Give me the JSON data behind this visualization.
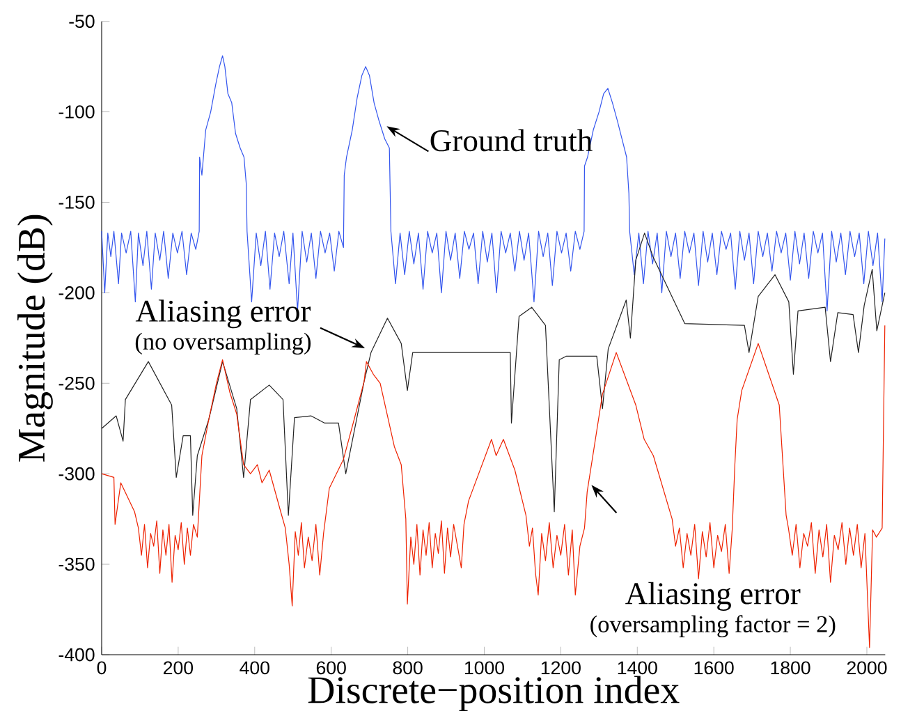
{
  "chart_data": {
    "type": "line",
    "xlabel": "Discrete−position index",
    "ylabel": "Magnitude (dB)",
    "xlim": [
      0,
      2048
    ],
    "ylim": [
      -400,
      -50
    ],
    "xticks": [
      0,
      200,
      400,
      600,
      800,
      1000,
      1200,
      1400,
      1600,
      1800,
      2000
    ],
    "yticks": [
      -400,
      -350,
      -300,
      -250,
      -200,
      -150,
      -100,
      -50
    ],
    "series": [
      {
        "color": "#3355ee",
        "x": [
          0,
          8,
          16,
          24,
          32,
          44,
          52,
          64,
          76,
          88,
          96,
          108,
          118,
          130,
          140,
          152,
          162,
          174,
          186,
          198,
          210,
          222,
          234,
          246,
          255,
          256,
          262,
          272,
          285,
          298,
          308,
          316,
          322,
          330,
          340,
          350,
          362,
          372,
          378,
          380,
          392,
          404,
          416,
          428,
          440,
          452,
          464,
          476,
          490,
          500,
          512,
          524,
          536,
          548,
          560,
          572,
          584,
          596,
          608,
          620,
          632,
          634,
          640,
          655,
          668,
          680,
          690,
          700,
          712,
          725,
          740,
          752,
          756,
          768,
          780,
          792,
          804,
          816,
          828,
          840,
          852,
          864,
          876,
          888,
          900,
          912,
          924,
          936,
          948,
          960,
          972,
          984,
          996,
          1008,
          1020,
          1032,
          1044,
          1056,
          1068,
          1080,
          1092,
          1104,
          1116,
          1130,
          1142,
          1154,
          1166,
          1178,
          1190,
          1202,
          1214,
          1226,
          1238,
          1250,
          1261,
          1262,
          1270,
          1285,
          1300,
          1312,
          1323,
          1335,
          1348,
          1360,
          1372,
          1378,
          1380,
          1392,
          1404,
          1416,
          1428,
          1440,
          1452,
          1464,
          1476,
          1488,
          1500,
          1512,
          1524,
          1536,
          1548,
          1560,
          1572,
          1584,
          1596,
          1608,
          1620,
          1632,
          1644,
          1656,
          1668,
          1680,
          1692,
          1704,
          1716,
          1728,
          1740,
          1752,
          1764,
          1776,
          1788,
          1800,
          1812,
          1824,
          1836,
          1848,
          1860,
          1872,
          1884,
          1896,
          1908,
          1920,
          1932,
          1944,
          1956,
          1968,
          1980,
          1992,
          2004,
          2016,
          2028,
          2040,
          2047
        ],
        "values": [
          -166,
          -200,
          -167,
          -180,
          -166,
          -195,
          -167,
          -178,
          -166,
          -205,
          -167,
          -185,
          -166,
          -198,
          -167,
          -182,
          -166,
          -192,
          -167,
          -178,
          -166,
          -190,
          -167,
          -176,
          -166,
          -125,
          -135,
          -110,
          -100,
          -85,
          -75,
          -69,
          -75,
          -90,
          -95,
          -112,
          -120,
          -125,
          -140,
          -166,
          -205,
          -167,
          -185,
          -166,
          -198,
          -167,
          -180,
          -166,
          -195,
          -167,
          -210,
          -166,
          -183,
          -167,
          -192,
          -166,
          -178,
          -167,
          -188,
          -166,
          -175,
          -135,
          -125,
          -110,
          -92,
          -80,
          -75,
          -80,
          -95,
          -105,
          -115,
          -120,
          -166,
          -195,
          -167,
          -190,
          -166,
          -184,
          -167,
          -198,
          -166,
          -178,
          -167,
          -200,
          -166,
          -182,
          -167,
          -192,
          -166,
          -176,
          -167,
          -195,
          -166,
          -183,
          -167,
          -200,
          -166,
          -178,
          -167,
          -188,
          -166,
          -182,
          -167,
          -205,
          -166,
          -180,
          -167,
          -196,
          -166,
          -178,
          -167,
          -188,
          -166,
          -176,
          -166,
          -130,
          -125,
          -110,
          -100,
          -90,
          -87,
          -95,
          -105,
          -115,
          -125,
          -145,
          -166,
          -190,
          -167,
          -195,
          -166,
          -184,
          -167,
          -200,
          -166,
          -180,
          -167,
          -192,
          -166,
          -178,
          -167,
          -196,
          -166,
          -183,
          -167,
          -190,
          -166,
          -176,
          -167,
          -198,
          -166,
          -182,
          -167,
          -195,
          -166,
          -180,
          -167,
          -188,
          -166,
          -178,
          -167,
          -193,
          -166,
          -184,
          -167,
          -192,
          -166,
          -178,
          -167,
          -210,
          -166,
          -183,
          -167,
          -190,
          -166,
          -180,
          -167,
          -195,
          -166,
          -185,
          -167,
          -205,
          -170
        ]
      },
      {
        "color": "#222222",
        "x": [
          0,
          38,
          56,
          62,
          122,
          183,
          195,
          213,
          232,
          238,
          250,
          280,
          316,
          353,
          371,
          389,
          438,
          474,
          488,
          504,
          547,
          583,
          619,
          638,
          686,
          704,
          747,
          783,
          799,
          813,
          838,
          1068,
          1071,
          1091,
          1124,
          1160,
          1183,
          1196,
          1215,
          1294,
          1309,
          1324,
          1371,
          1382,
          1396,
          1419,
          1441,
          1524,
          1680,
          1692,
          1716,
          1760,
          1796,
          1808,
          1820,
          1891,
          1905,
          1924,
          1964,
          1978,
          1993,
          2014,
          2026,
          2047
        ],
        "values": [
          -275,
          -268,
          -282,
          -259,
          -238,
          -262,
          -302,
          -279,
          -279,
          -323,
          -290,
          -270,
          -238,
          -264,
          -302,
          -259,
          -251,
          -259,
          -323,
          -269,
          -268,
          -272,
          -272,
          -300,
          -249,
          -233,
          -214,
          -228,
          -254,
          -233,
          -233,
          -233,
          -272,
          -213,
          -208,
          -218,
          -321,
          -237,
          -235,
          -235,
          -264,
          -231,
          -204,
          -225,
          -182,
          -167,
          -180,
          -217,
          -218,
          -233,
          -202,
          -190,
          -205,
          -245,
          -210,
          -208,
          -238,
          -211,
          -212,
          -233,
          -207,
          -187,
          -221,
          -200
        ]
      },
      {
        "color": "#ee2200",
        "x": [
          0,
          32,
          35,
          50,
          86,
          96,
          104,
          112,
          120,
          128,
          136,
          144,
          152,
          160,
          168,
          176,
          184,
          192,
          200,
          208,
          216,
          224,
          232,
          240,
          250,
          262,
          280,
          300,
          316,
          335,
          353,
          371,
          389,
          407,
          419,
          438,
          468,
          480,
          490,
          498,
          506,
          514,
          522,
          530,
          540,
          550,
          560,
          570,
          580,
          595,
          632,
          660,
          686,
          692,
          710,
          728,
          765,
          783,
          795,
          799,
          808,
          816,
          824,
          832,
          840,
          848,
          856,
          864,
          872,
          880,
          888,
          896,
          904,
          912,
          920,
          930,
          940,
          947,
          959,
          1019,
          1031,
          1050,
          1080,
          1109,
          1118,
          1126,
          1134,
          1141,
          1150,
          1160,
          1170,
          1180,
          1190,
          1200,
          1210,
          1220,
          1230,
          1238,
          1250,
          1262,
          1269,
          1309,
          1345,
          1396,
          1418,
          1442,
          1491,
          1500,
          1510,
          1520,
          1530,
          1540,
          1550,
          1560,
          1570,
          1580,
          1590,
          1600,
          1610,
          1620,
          1630,
          1640,
          1648,
          1655,
          1661,
          1673,
          1716,
          1771,
          1789,
          1795,
          1805,
          1815,
          1825,
          1835,
          1845,
          1855,
          1865,
          1875,
          1885,
          1895,
          1905,
          1915,
          1925,
          1935,
          1945,
          1955,
          1965,
          1975,
          1985,
          1995,
          2007,
          2015,
          2025,
          2040,
          2047
        ],
        "values": [
          -300,
          -302,
          -328,
          -305,
          -321,
          -330,
          -345,
          -328,
          -352,
          -333,
          -340,
          -326,
          -355,
          -331,
          -345,
          -328,
          -360,
          -334,
          -342,
          -327,
          -350,
          -330,
          -345,
          -328,
          -335,
          -290,
          -270,
          -250,
          -237,
          -255,
          -267,
          -295,
          -300,
          -295,
          -305,
          -298,
          -321,
          -330,
          -350,
          -373,
          -332,
          -345,
          -327,
          -352,
          -335,
          -348,
          -328,
          -356,
          -333,
          -308,
          -292,
          -270,
          -249,
          -238,
          -245,
          -250,
          -285,
          -295,
          -325,
          -372,
          -335,
          -350,
          -328,
          -356,
          -331,
          -345,
          -327,
          -352,
          -333,
          -344,
          -326,
          -355,
          -330,
          -346,
          -328,
          -340,
          -352,
          -328,
          -315,
          -281,
          -290,
          -281,
          -298,
          -323,
          -340,
          -330,
          -355,
          -367,
          -333,
          -348,
          -327,
          -352,
          -334,
          -345,
          -328,
          -356,
          -331,
          -367,
          -340,
          -330,
          -310,
          -256,
          -233,
          -262,
          -281,
          -290,
          -325,
          -340,
          -330,
          -352,
          -333,
          -345,
          -328,
          -358,
          -332,
          -346,
          -327,
          -352,
          -334,
          -343,
          -328,
          -355,
          -331,
          -295,
          -270,
          -254,
          -228,
          -262,
          -323,
          -330,
          -345,
          -328,
          -352,
          -333,
          -340,
          -327,
          -355,
          -331,
          -346,
          -328,
          -360,
          -334,
          -342,
          -327,
          -350,
          -330,
          -345,
          -328,
          -352,
          -333,
          -396,
          -331,
          -335,
          -330,
          -218
        ]
      }
    ],
    "annotations": [
      {
        "text": "Ground truth",
        "x": 745,
        "y": -108
      },
      "Aliasing error",
      "(no oversampling)",
      "Aliasing error",
      "(oversampling factor = 2)"
    ]
  }
}
